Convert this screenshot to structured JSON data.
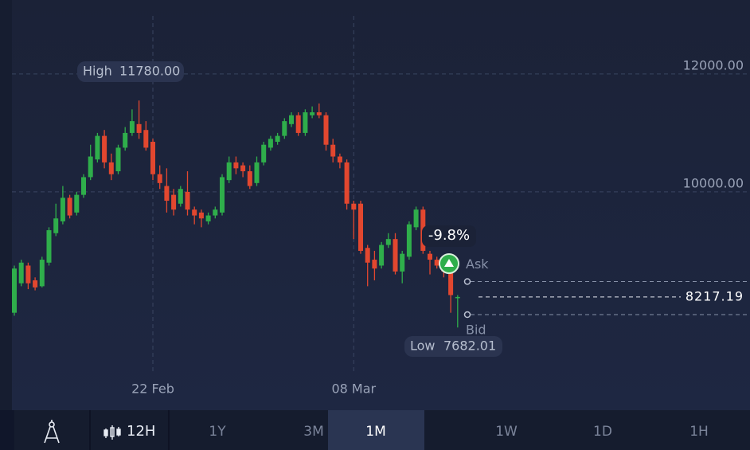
{
  "chart_data": {
    "type": "candlestick",
    "open": [
      7950,
      8450,
      8750,
      8500,
      8400,
      8800,
      9300,
      9500,
      9900,
      9650,
      9950,
      10250,
      10550,
      10950,
      10500,
      10350,
      10750,
      11000,
      11150,
      11050,
      10850,
      10300,
      10100,
      9950,
      9800,
      10000,
      9700,
      9650,
      9500,
      9600,
      9650,
      10200,
      10500,
      10450,
      10350,
      10150,
      10500,
      10750,
      10850,
      10950,
      11150,
      11300,
      11000,
      11300,
      11350,
      11300,
      10800,
      10600,
      10500,
      9800,
      9800,
      9050,
      8850,
      8750,
      9100,
      9200,
      8650,
      8900,
      9400,
      9700,
      8950,
      8850,
      8750,
      8800,
      8200
    ],
    "high": [
      8750,
      8850,
      8800,
      8550,
      8900,
      9400,
      9800,
      10100,
      9950,
      10000,
      10300,
      10800,
      11000,
      11050,
      10650,
      10800,
      11100,
      11400,
      11550,
      11200,
      10900,
      10450,
      10400,
      10050,
      10100,
      10350,
      9750,
      9700,
      9650,
      9750,
      10300,
      10600,
      10600,
      10500,
      10450,
      10600,
      10850,
      10950,
      11000,
      11250,
      11350,
      11350,
      11400,
      11450,
      11500,
      11350,
      10900,
      10650,
      10550,
      9850,
      9850,
      9100,
      9000,
      9150,
      9300,
      9300,
      9000,
      9500,
      9750,
      9750,
      9000,
      8900,
      8850,
      8850,
      8250
    ],
    "low": [
      7900,
      8400,
      8350,
      8330,
      8380,
      8750,
      9250,
      9450,
      9550,
      9600,
      9900,
      10200,
      10500,
      10400,
      10200,
      10300,
      10700,
      10950,
      10900,
      10700,
      10200,
      10050,
      9650,
      9600,
      9750,
      9600,
      9450,
      9400,
      9450,
      9550,
      9600,
      10150,
      10300,
      10250,
      10050,
      10100,
      10450,
      10700,
      10800,
      10900,
      11100,
      10950,
      10950,
      11250,
      11250,
      10700,
      10500,
      10400,
      9700,
      9200,
      8950,
      8400,
      8500,
      8700,
      9050,
      8600,
      8450,
      8850,
      9350,
      8950,
      8600,
      8700,
      8550,
      7950,
      7700
    ],
    "close": [
      8700,
      8800,
      8450,
      8380,
      8850,
      9350,
      9550,
      9900,
      9600,
      9950,
      10250,
      10600,
      10950,
      10500,
      10300,
      10750,
      11000,
      11200,
      11000,
      10750,
      10300,
      10150,
      9850,
      9700,
      10050,
      9700,
      9600,
      9550,
      9600,
      9700,
      10250,
      10500,
      10400,
      10350,
      10100,
      10500,
      10800,
      10900,
      10950,
      11200,
      11300,
      11000,
      11350,
      11350,
      11300,
      10800,
      10600,
      10500,
      9800,
      9700,
      9000,
      8800,
      8700,
      9100,
      9200,
      8650,
      8950,
      9450,
      9700,
      9000,
      8850,
      8750,
      8650,
      8250,
      8217.19
    ],
    "up_color": "#2fae4b",
    "down_color": "#e2472f",
    "ylim": [
      6365,
      13255
    ],
    "yticks": [
      {
        "value": 12000,
        "label": "12000.00"
      },
      {
        "value": 10000,
        "label": "10000.00"
      }
    ],
    "xticks": [
      {
        "value": 20,
        "label": "22 Feb"
      },
      {
        "value": 49,
        "label": "08 Mar"
      }
    ],
    "grid": true,
    "high_label": "High",
    "high_value": "11780.00",
    "low_label": "Low",
    "low_value": "7682.01",
    "change": "-9.8%",
    "price": {
      "value": 8217.19,
      "label": "8217.19"
    },
    "ask": {
      "name": "Ask",
      "value": 8480
    },
    "bid": {
      "name": "Bid",
      "value": 7918
    }
  },
  "toolbar": {
    "interval": "12H",
    "ranges": [
      "1Y",
      "3M",
      "1M",
      "1W",
      "1D",
      "1H"
    ],
    "active": 2
  }
}
